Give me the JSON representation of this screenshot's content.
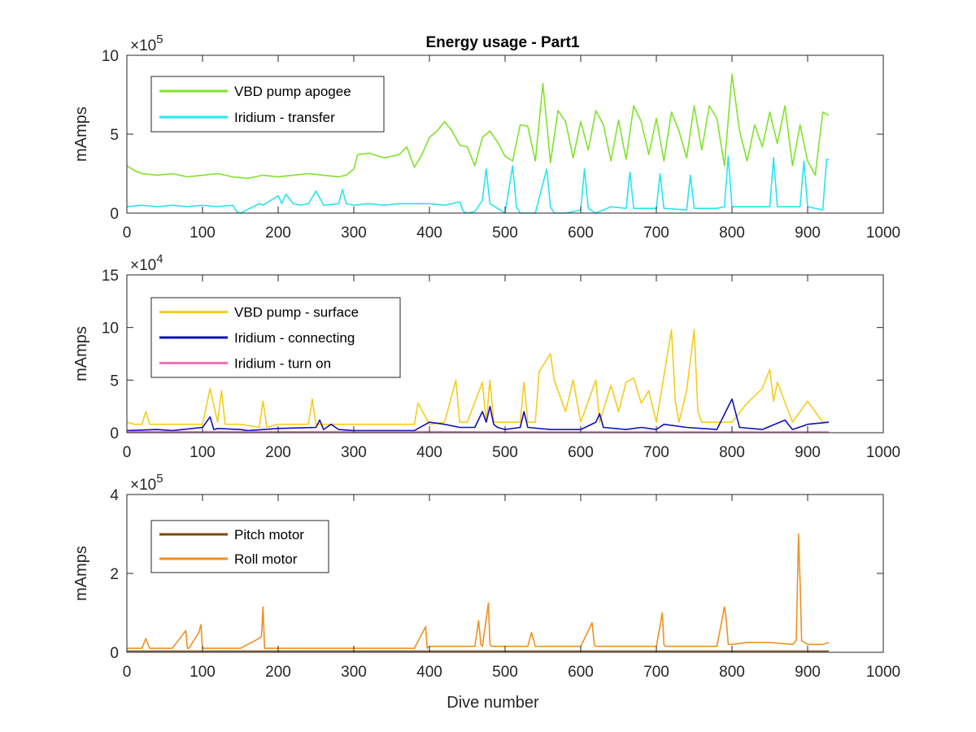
{
  "figure": {
    "title": "Energy usage - Part1"
  },
  "chart_data": [
    {
      "type": "line",
      "ylabel": "mAmps",
      "xlabel": "",
      "xlim": [
        0,
        1000
      ],
      "ylim": [
        0,
        1000000
      ],
      "xticks": [
        "0",
        "100",
        "200",
        "300",
        "400",
        "500",
        "600",
        "700",
        "800",
        "900",
        "1000"
      ],
      "yticks": [
        "0",
        "5",
        "10"
      ],
      "exponent": "5",
      "legend": "top-left",
      "series": [
        {
          "name": "VBD pump apogee",
          "color": "#7FE32B",
          "x": [
            0,
            10,
            20,
            40,
            60,
            80,
            100,
            120,
            140,
            160,
            180,
            200,
            220,
            240,
            260,
            280,
            290,
            300,
            305,
            320,
            340,
            360,
            370,
            380,
            390,
            400,
            410,
            420,
            430,
            440,
            450,
            460,
            470,
            480,
            490,
            500,
            510,
            520,
            530,
            540,
            550,
            560,
            570,
            580,
            590,
            600,
            610,
            620,
            630,
            640,
            650,
            660,
            670,
            680,
            690,
            700,
            710,
            720,
            730,
            740,
            750,
            760,
            770,
            780,
            790,
            800,
            810,
            820,
            830,
            840,
            850,
            860,
            870,
            880,
            890,
            900,
            910,
            920,
            928
          ],
          "y": [
            300000,
            270000,
            250000,
            240000,
            250000,
            230000,
            240000,
            250000,
            230000,
            220000,
            240000,
            230000,
            240000,
            250000,
            240000,
            230000,
            240000,
            280000,
            370000,
            380000,
            350000,
            370000,
            420000,
            290000,
            370000,
            480000,
            520000,
            580000,
            520000,
            430000,
            420000,
            300000,
            480000,
            520000,
            450000,
            360000,
            330000,
            560000,
            550000,
            330000,
            820000,
            320000,
            650000,
            580000,
            350000,
            580000,
            400000,
            650000,
            560000,
            330000,
            590000,
            340000,
            680000,
            580000,
            370000,
            600000,
            330000,
            640000,
            520000,
            350000,
            680000,
            400000,
            680000,
            600000,
            300000,
            880000,
            520000,
            330000,
            560000,
            420000,
            640000,
            440000,
            680000,
            300000,
            560000,
            330000,
            240000,
            640000,
            620000
          ]
        },
        {
          "name": "Iridium - transfer",
          "color": "#26E6F0",
          "x": [
            0,
            20,
            40,
            60,
            80,
            100,
            120,
            140,
            145,
            150,
            175,
            180,
            200,
            205,
            210,
            220,
            230,
            240,
            250,
            260,
            280,
            285,
            290,
            300,
            320,
            340,
            360,
            380,
            400,
            420,
            440,
            445,
            450,
            460,
            470,
            475,
            480,
            500,
            510,
            515,
            520,
            540,
            555,
            560,
            565,
            580,
            600,
            605,
            610,
            620,
            640,
            660,
            665,
            670,
            700,
            705,
            710,
            740,
            745,
            750,
            780,
            790,
            795,
            800,
            840,
            850,
            855,
            860,
            880,
            890,
            895,
            900,
            920,
            925,
            928
          ],
          "y": [
            40000,
            50000,
            40000,
            50000,
            40000,
            50000,
            40000,
            50000,
            10000,
            0,
            60000,
            50000,
            110000,
            60000,
            120000,
            60000,
            50000,
            60000,
            140000,
            50000,
            60000,
            150000,
            60000,
            50000,
            60000,
            50000,
            60000,
            60000,
            60000,
            50000,
            70000,
            10000,
            0,
            10000,
            80000,
            280000,
            60000,
            0,
            300000,
            40000,
            0,
            0,
            280000,
            40000,
            0,
            0,
            20000,
            280000,
            30000,
            0,
            40000,
            30000,
            260000,
            30000,
            30000,
            250000,
            30000,
            20000,
            240000,
            30000,
            30000,
            40000,
            360000,
            40000,
            40000,
            40000,
            350000,
            40000,
            40000,
            40000,
            330000,
            40000,
            20000,
            340000,
            340000
          ]
        }
      ]
    },
    {
      "type": "line",
      "ylabel": "mAmps",
      "xlabel": "",
      "xlim": [
        0,
        1000
      ],
      "ylim": [
        0,
        150000
      ],
      "xticks": [
        "0",
        "100",
        "200",
        "300",
        "400",
        "500",
        "600",
        "700",
        "800",
        "900",
        "1000"
      ],
      "yticks": [
        "0",
        "5",
        "10",
        "15"
      ],
      "exponent": "4",
      "legend": "top-left",
      "series": [
        {
          "name": "VBD pump - surface",
          "color": "#F5CC1C",
          "x": [
            0,
            10,
            20,
            25,
            30,
            50,
            80,
            100,
            110,
            120,
            125,
            130,
            150,
            175,
            180,
            185,
            200,
            240,
            245,
            250,
            300,
            380,
            385,
            400,
            420,
            435,
            440,
            450,
            470,
            475,
            480,
            485,
            500,
            520,
            525,
            530,
            540,
            545,
            560,
            565,
            570,
            580,
            590,
            600,
            620,
            625,
            640,
            650,
            660,
            670,
            680,
            690,
            700,
            720,
            725,
            730,
            740,
            750,
            755,
            760,
            780,
            800,
            820,
            840,
            850,
            855,
            860,
            880,
            900,
            920,
            928
          ],
          "y": [
            10000,
            8000,
            8000,
            20000,
            8000,
            8000,
            8000,
            8000,
            42000,
            10000,
            40000,
            8000,
            8000,
            5000,
            30000,
            5000,
            8000,
            8000,
            32000,
            8000,
            8000,
            8000,
            28000,
            8000,
            10000,
            50000,
            10000,
            10000,
            48000,
            10000,
            50000,
            10000,
            10000,
            10000,
            48000,
            10000,
            10000,
            58000,
            75000,
            50000,
            40000,
            20000,
            50000,
            10000,
            50000,
            10000,
            45000,
            20000,
            48000,
            52000,
            28000,
            40000,
            10000,
            98000,
            30000,
            10000,
            40000,
            98000,
            20000,
            10000,
            10000,
            10000,
            28000,
            42000,
            60000,
            30000,
            48000,
            10000,
            30000,
            10000,
            10000
          ]
        },
        {
          "name": "Iridium - connecting",
          "color": "#1010B8",
          "x": [
            0,
            40,
            60,
            100,
            110,
            115,
            120,
            150,
            160,
            200,
            250,
            255,
            260,
            270,
            280,
            300,
            380,
            400,
            420,
            440,
            460,
            470,
            475,
            480,
            485,
            490,
            500,
            520,
            525,
            530,
            560,
            600,
            620,
            625,
            630,
            660,
            680,
            700,
            710,
            740,
            780,
            800,
            810,
            840,
            870,
            880,
            900,
            928
          ],
          "y": [
            2000,
            3000,
            2000,
            5000,
            15000,
            3000,
            4000,
            3000,
            2000,
            4000,
            5000,
            12000,
            3000,
            8000,
            3000,
            2000,
            2000,
            10000,
            8000,
            5000,
            5000,
            20000,
            10000,
            25000,
            8000,
            5000,
            3000,
            5000,
            20000,
            5000,
            3000,
            3000,
            10000,
            18000,
            5000,
            3000,
            5000,
            3000,
            8000,
            5000,
            3000,
            32000,
            5000,
            3000,
            12000,
            3000,
            8000,
            10000
          ]
        },
        {
          "name": "Iridium - turn on",
          "color": "#F070B8",
          "x": [
            0,
            100,
            200,
            300,
            400,
            500,
            600,
            700,
            800,
            900,
            928
          ],
          "y": [
            1000,
            1000,
            1000,
            1000,
            1000,
            800,
            800,
            800,
            800,
            800,
            800
          ]
        }
      ]
    },
    {
      "type": "line",
      "ylabel": "mAmps",
      "xlabel": "Dive number",
      "xlim": [
        0,
        1000
      ],
      "ylim": [
        0,
        400000
      ],
      "xticks": [
        "0",
        "100",
        "200",
        "300",
        "400",
        "500",
        "600",
        "700",
        "800",
        "900",
        "1000"
      ],
      "yticks": [
        "0",
        "2",
        "4"
      ],
      "exponent": "5",
      "legend": "top-left",
      "series": [
        {
          "name": "Pitch motor",
          "color": "#7A4A1A",
          "x": [
            0,
            100,
            200,
            300,
            400,
            500,
            600,
            700,
            800,
            900,
            928
          ],
          "y": [
            3000,
            3000,
            3000,
            3000,
            3000,
            3000,
            3000,
            3000,
            3000,
            3000,
            3000
          ]
        },
        {
          "name": "Roll motor",
          "color": "#EE9020",
          "x": [
            0,
            20,
            25,
            30,
            60,
            78,
            80,
            82,
            95,
            98,
            100,
            102,
            110,
            150,
            170,
            178,
            180,
            182,
            200,
            250,
            300,
            380,
            395,
            397,
            400,
            420,
            460,
            465,
            468,
            470,
            478,
            480,
            482,
            500,
            530,
            535,
            540,
            600,
            615,
            618,
            620,
            650,
            700,
            708,
            710,
            712,
            750,
            780,
            790,
            792,
            795,
            800,
            820,
            850,
            880,
            885,
            888,
            890,
            892,
            900,
            920,
            928
          ],
          "y": [
            10000,
            10000,
            35000,
            10000,
            10000,
            55000,
            10000,
            10000,
            50000,
            70000,
            10000,
            10000,
            10000,
            10000,
            30000,
            40000,
            115000,
            10000,
            10000,
            10000,
            10000,
            10000,
            65000,
            10000,
            15000,
            15000,
            15000,
            80000,
            20000,
            15000,
            125000,
            20000,
            15000,
            15000,
            15000,
            50000,
            15000,
            15000,
            75000,
            20000,
            15000,
            15000,
            15000,
            100000,
            20000,
            15000,
            15000,
            15000,
            115000,
            90000,
            20000,
            20000,
            25000,
            25000,
            20000,
            30000,
            300000,
            180000,
            30000,
            20000,
            20000,
            25000
          ]
        }
      ]
    }
  ]
}
